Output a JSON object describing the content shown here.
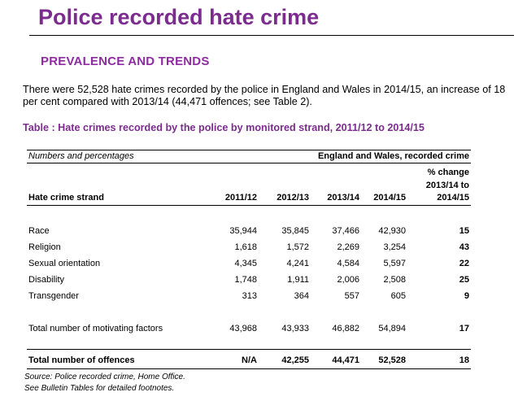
{
  "page": {
    "title": "Police recorded hate crime",
    "section_heading": "PREVALENCE AND TRENDS",
    "intro": "There were 52,528 hate crimes recorded by the police in England and Wales in 2014/15, an increase of 18 per cent compared with 2013/14 (44,471 offences; see Table 2).",
    "table_caption": "Table   : Hate crimes recorded by the police by monitored strand, 2011/12 to 2014/15"
  },
  "table": {
    "units": "Numbers and percentages",
    "scope": "England and Wales, recorded crime",
    "headers": {
      "strand": "Hate crime strand",
      "y1": "2011/12",
      "y2": "2012/13",
      "y3": "2013/14",
      "y4": "2014/15",
      "change_line1": "% change",
      "change_line2": "2013/14 to",
      "change_line3": "2014/15"
    },
    "rows": [
      {
        "label": "Race",
        "y1": "35,944",
        "y2": "35,845",
        "y3": "37,466",
        "y4": "42,930",
        "change": "15"
      },
      {
        "label": "Religion",
        "y1": "1,618",
        "y2": "1,572",
        "y3": "2,269",
        "y4": "3,254",
        "change": "43"
      },
      {
        "label": "Sexual orientation",
        "y1": "4,345",
        "y2": "4,241",
        "y3": "4,584",
        "y4": "5,597",
        "change": "22"
      },
      {
        "label": "Disability",
        "y1": "1,748",
        "y2": "1,911",
        "y3": "2,006",
        "y4": "2,508",
        "change": "25"
      },
      {
        "label": "Transgender",
        "y1": "313",
        "y2": "364",
        "y3": "557",
        "y4": "605",
        "change": "9"
      }
    ],
    "motivating": {
      "label": "Total number of motivating factors",
      "y1": "43,968",
      "y2": "43,933",
      "y3": "46,882",
      "y4": "54,894",
      "change": "17"
    },
    "offences": {
      "label": "Total number of offences",
      "y1": "N/A",
      "y2": "42,255",
      "y3": "44,471",
      "y4": "52,528",
      "change": "18"
    }
  },
  "footnotes": {
    "source": "Source: Police recorded crime, Home Office.",
    "see": "See Bulletin Tables for detailed footnotes."
  }
}
